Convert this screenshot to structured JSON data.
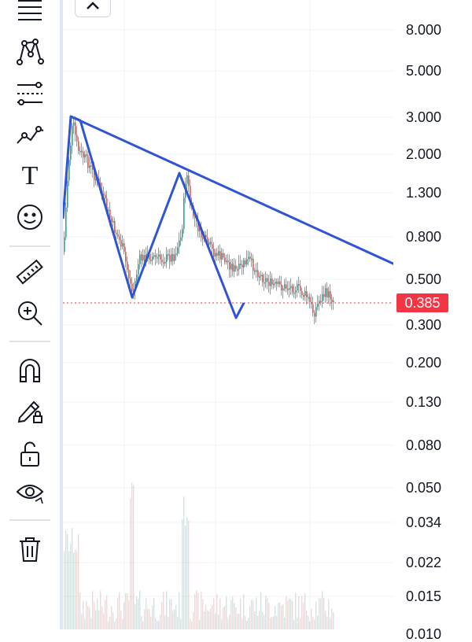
{
  "toolbar": {
    "tools": [
      {
        "name": "menu-lines-icon"
      },
      {
        "name": "pattern-tool-icon"
      },
      {
        "name": "fib-retracement-icon"
      },
      {
        "name": "trend-line-icon"
      },
      {
        "name": "text-tool-icon",
        "glyph": "T"
      },
      {
        "name": "emoji-icon"
      },
      {
        "name": "ruler-icon"
      },
      {
        "name": "zoom-in-icon"
      },
      {
        "name": "magnet-icon"
      },
      {
        "name": "pencil-lock-icon"
      },
      {
        "name": "unlock-icon"
      },
      {
        "name": "eye-icon"
      },
      {
        "name": "trash-icon"
      }
    ]
  },
  "chart": {
    "collapse_icon": "chevron-up-icon",
    "current_price": "0.385",
    "colors": {
      "up": "#26a69a",
      "down": "#ef5350",
      "drawing": "#2f55d4",
      "price_line": "#f23645"
    }
  },
  "price_axis": {
    "ticks": [
      "8.000",
      "5.000",
      "3.000",
      "2.000",
      "1.300",
      "0.800",
      "0.500",
      "0.300",
      "0.200",
      "0.130",
      "0.080",
      "0.050",
      "0.034",
      "0.022",
      "0.015",
      "0.010"
    ]
  },
  "chart_data": {
    "type": "candlestick",
    "scale": "log",
    "ylim": [
      0.01,
      10
    ]
  }
}
